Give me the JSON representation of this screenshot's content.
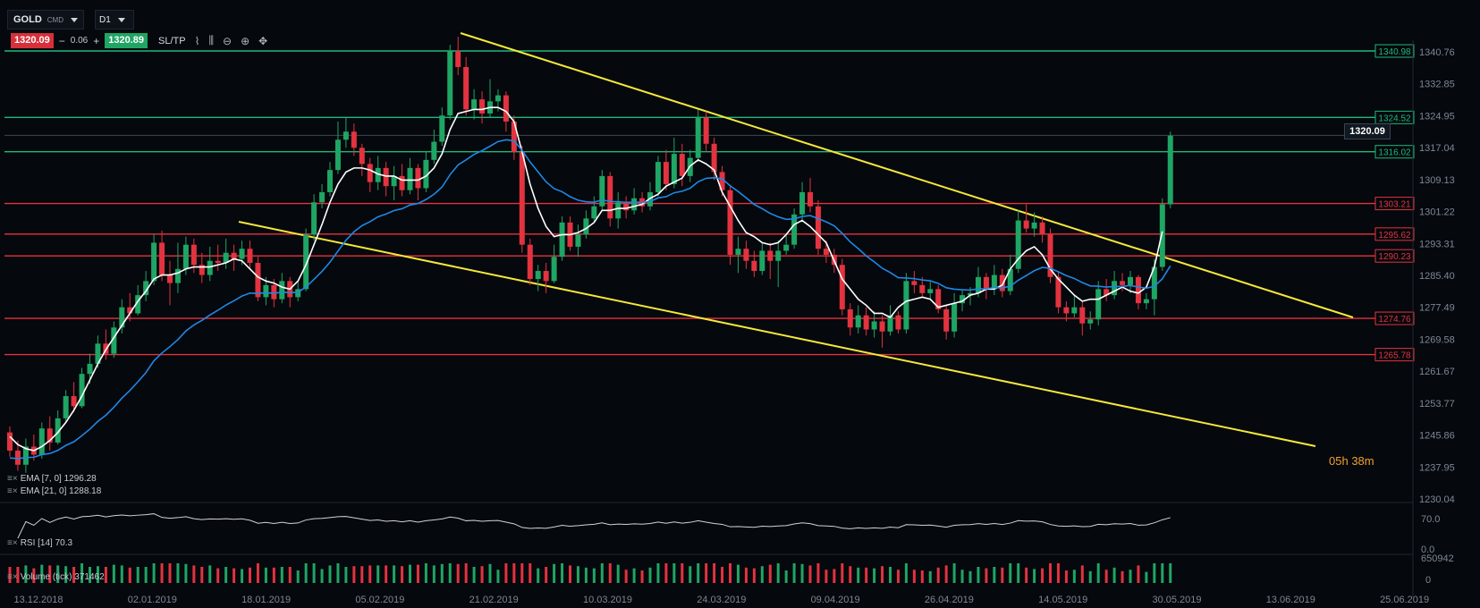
{
  "header": {
    "symbol": "GOLD",
    "symbol_sub": "CMD",
    "timeframe": "D1",
    "sell_price": "1320.09",
    "step_minus": "−",
    "spread": "0.06",
    "step_plus": "+",
    "buy_price": "1320.89",
    "sltp_label": "SL/TP"
  },
  "icons": [
    "line-chart-icon",
    "candles-icon",
    "zoom-out-icon",
    "zoom-in-icon",
    "move-icon"
  ],
  "colors": {
    "bull": "#1fa564",
    "bear": "#e2333f",
    "ema7": "#ffffff",
    "ema21": "#1e88e5",
    "support": "#e2333f",
    "resistance": "#1fb87a",
    "trendline": "#f5e83a"
  },
  "legend": {
    "ema7": "EMA [7, 0] 1296.28",
    "ema21": "EMA [21, 0] 1288.18",
    "rsi": "RSI [14] 70.3",
    "volume": "Volume (tick) 371462"
  },
  "countdown": {
    "hours": "05",
    "h": "h",
    "minutes": "38",
    "m": "m"
  },
  "current_price": "1320.09",
  "chart_data": {
    "type": "candlestick",
    "y_ticks": [
      "1340.76",
      "1332.85",
      "1324.95",
      "1317.04",
      "1309.13",
      "1301.22",
      "1293.31",
      "1285.40",
      "1277.49",
      "1269.58",
      "1261.67",
      "1253.77",
      "1245.86",
      "1237.95",
      "1230.04"
    ],
    "ylim": [
      1230.04,
      1344.7
    ],
    "x_ticks": [
      "13.12.2018",
      "02.01.2019",
      "18.01.2019",
      "05.02.2019",
      "21.02.2019",
      "10.03.2019",
      "24.03.2019",
      "09.04.2019",
      "26.04.2019",
      "14.05.2019",
      "30.05.2019",
      "13.06.2019",
      "25.06.2019"
    ],
    "horizontal_levels": [
      {
        "price": 1340.98,
        "label": "1340.98",
        "kind": "resistance"
      },
      {
        "price": 1324.52,
        "label": "1324.52",
        "kind": "resistance"
      },
      {
        "price": 1316.02,
        "label": "1316.02",
        "kind": "resistance"
      },
      {
        "price": 1303.21,
        "label": "1303.21",
        "kind": "support"
      },
      {
        "price": 1295.62,
        "label": "1295.62",
        "kind": "support"
      },
      {
        "price": 1290.23,
        "label": "1290.23",
        "kind": "support"
      },
      {
        "price": 1274.76,
        "label": "1274.76",
        "kind": "support"
      },
      {
        "price": 1265.78,
        "label": "1265.78",
        "kind": "support"
      }
    ],
    "candles": [
      [
        1246.5,
        1242.0,
        1248.0,
        1240.5
      ],
      [
        1242.0,
        1238.5,
        1244.5,
        1237.0
      ],
      [
        1238.5,
        1243.0,
        1245.0,
        1236.5
      ],
      [
        1243.0,
        1241.0,
        1246.0,
        1239.5
      ],
      [
        1241.0,
        1247.5,
        1249.0,
        1240.0
      ],
      [
        1247.5,
        1244.0,
        1250.5,
        1242.0
      ],
      [
        1244.0,
        1250.0,
        1252.0,
        1243.5
      ],
      [
        1250.0,
        1255.5,
        1257.0,
        1249.0
      ],
      [
        1255.5,
        1253.0,
        1259.0,
        1251.5
      ],
      [
        1253.0,
        1261.0,
        1262.5,
        1252.5
      ],
      [
        1261.0,
        1263.5,
        1266.0,
        1258.5
      ],
      [
        1263.5,
        1268.5,
        1270.5,
        1262.5
      ],
      [
        1268.5,
        1266.0,
        1272.0,
        1264.5
      ],
      [
        1266.0,
        1272.5,
        1274.0,
        1265.0
      ],
      [
        1272.5,
        1277.5,
        1279.5,
        1271.0
      ],
      [
        1277.5,
        1276.0,
        1281.0,
        1274.0
      ],
      [
        1276.0,
        1280.5,
        1283.0,
        1275.5
      ],
      [
        1280.5,
        1284.0,
        1286.5,
        1279.0
      ],
      [
        1284.0,
        1293.5,
        1295.5,
        1283.0
      ],
      [
        1293.5,
        1285.5,
        1296.5,
        1284.0
      ],
      [
        1285.5,
        1283.5,
        1289.0,
        1278.0
      ],
      [
        1283.5,
        1287.0,
        1293.5,
        1281.0
      ],
      [
        1287.0,
        1293.0,
        1295.0,
        1285.5
      ],
      [
        1293.0,
        1288.0,
        1294.5,
        1286.0
      ],
      [
        1288.0,
        1285.5,
        1291.0,
        1283.5
      ],
      [
        1285.5,
        1289.0,
        1292.5,
        1284.0
      ],
      [
        1289.0,
        1288.5,
        1293.0,
        1286.5
      ],
      [
        1288.5,
        1291.0,
        1294.5,
        1287.0
      ],
      [
        1291.0,
        1289.5,
        1293.0,
        1286.5
      ],
      [
        1289.5,
        1292.0,
        1294.0,
        1288.0
      ],
      [
        1292.0,
        1288.5,
        1294.0,
        1287.0
      ],
      [
        1288.5,
        1280.0,
        1290.0,
        1279.0
      ],
      [
        1280.0,
        1283.0,
        1285.0,
        1278.0
      ],
      [
        1283.0,
        1279.5,
        1284.5,
        1277.5
      ],
      [
        1279.5,
        1284.0,
        1286.0,
        1278.5
      ],
      [
        1284.0,
        1280.0,
        1285.0,
        1277.5
      ],
      [
        1280.0,
        1282.0,
        1284.0,
        1279.0
      ],
      [
        1282.0,
        1295.5,
        1297.0,
        1281.5
      ],
      [
        1295.5,
        1303.5,
        1305.5,
        1294.0
      ],
      [
        1303.5,
        1306.0,
        1308.0,
        1302.0
      ],
      [
        1306.0,
        1311.5,
        1313.5,
        1305.0
      ],
      [
        1311.5,
        1319.0,
        1323.5,
        1310.5
      ],
      [
        1319.0,
        1321.0,
        1324.5,
        1317.0
      ],
      [
        1321.0,
        1317.0,
        1323.0,
        1315.0
      ],
      [
        1317.0,
        1313.0,
        1318.0,
        1310.0
      ],
      [
        1313.0,
        1308.5,
        1314.5,
        1306.0
      ],
      [
        1308.5,
        1312.0,
        1315.0,
        1306.5
      ],
      [
        1312.0,
        1307.5,
        1313.5,
        1305.0
      ],
      [
        1307.5,
        1310.0,
        1312.5,
        1304.0
      ],
      [
        1310.0,
        1306.5,
        1313.0,
        1305.0
      ],
      [
        1306.5,
        1312.0,
        1314.5,
        1305.5
      ],
      [
        1312.0,
        1307.0,
        1313.0,
        1304.0
      ],
      [
        1307.0,
        1314.0,
        1316.0,
        1306.0
      ],
      [
        1314.0,
        1318.5,
        1321.5,
        1313.0
      ],
      [
        1318.5,
        1325.0,
        1327.0,
        1317.5
      ],
      [
        1325.0,
        1341.0,
        1342.5,
        1324.0
      ],
      [
        1341.0,
        1337.0,
        1344.5,
        1335.0
      ],
      [
        1337.0,
        1326.5,
        1339.5,
        1325.0
      ],
      [
        1326.5,
        1329.0,
        1331.5,
        1324.0
      ],
      [
        1329.0,
        1325.5,
        1331.0,
        1323.0
      ],
      [
        1325.5,
        1328.5,
        1334.0,
        1324.5
      ],
      [
        1328.5,
        1330.0,
        1331.5,
        1326.0
      ],
      [
        1330.0,
        1323.5,
        1331.0,
        1321.0
      ],
      [
        1323.5,
        1316.0,
        1325.0,
        1314.0
      ],
      [
        1316.0,
        1293.0,
        1317.5,
        1291.0
      ],
      [
        1293.0,
        1284.5,
        1294.5,
        1283.0
      ],
      [
        1284.5,
        1286.5,
        1288.0,
        1281.5
      ],
      [
        1286.5,
        1284.0,
        1288.5,
        1281.0
      ],
      [
        1284.0,
        1290.0,
        1293.0,
        1283.5
      ],
      [
        1290.0,
        1298.5,
        1300.0,
        1289.0
      ],
      [
        1298.5,
        1292.5,
        1300.0,
        1291.5
      ],
      [
        1292.5,
        1295.5,
        1298.0,
        1290.0
      ],
      [
        1295.5,
        1299.5,
        1301.5,
        1294.5
      ],
      [
        1299.5,
        1302.5,
        1305.0,
        1298.5
      ],
      [
        1302.5,
        1310.0,
        1311.5,
        1301.5
      ],
      [
        1310.0,
        1299.5,
        1311.0,
        1297.5
      ],
      [
        1299.5,
        1303.5,
        1306.0,
        1297.0
      ],
      [
        1303.5,
        1301.5,
        1305.0,
        1299.5
      ],
      [
        1301.5,
        1304.5,
        1307.0,
        1300.5
      ],
      [
        1304.5,
        1302.5,
        1306.0,
        1301.0
      ],
      [
        1302.5,
        1306.0,
        1308.5,
        1301.5
      ],
      [
        1306.0,
        1313.5,
        1315.0,
        1305.0
      ],
      [
        1313.5,
        1308.0,
        1316.5,
        1306.5
      ],
      [
        1308.0,
        1315.5,
        1319.5,
        1307.0
      ],
      [
        1315.5,
        1310.0,
        1318.0,
        1307.5
      ],
      [
        1310.0,
        1314.5,
        1316.5,
        1308.5
      ],
      [
        1314.5,
        1324.5,
        1326.5,
        1313.5
      ],
      [
        1324.5,
        1318.0,
        1326.0,
        1316.0
      ],
      [
        1318.0,
        1311.0,
        1319.5,
        1309.0
      ],
      [
        1311.0,
        1306.5,
        1312.5,
        1305.0
      ],
      [
        1306.5,
        1290.5,
        1307.5,
        1288.0
      ],
      [
        1290.5,
        1292.0,
        1295.0,
        1286.0
      ],
      [
        1292.0,
        1289.0,
        1294.0,
        1287.0
      ],
      [
        1289.0,
        1286.5,
        1291.5,
        1285.0
      ],
      [
        1286.5,
        1291.5,
        1293.5,
        1285.5
      ],
      [
        1291.5,
        1289.0,
        1293.5,
        1284.5
      ],
      [
        1289.0,
        1291.5,
        1294.0,
        1282.5
      ],
      [
        1291.5,
        1293.0,
        1295.5,
        1290.5
      ],
      [
        1293.0,
        1300.5,
        1302.0,
        1292.0
      ],
      [
        1300.5,
        1306.0,
        1308.5,
        1299.0
      ],
      [
        1306.0,
        1302.5,
        1309.5,
        1301.0
      ],
      [
        1302.5,
        1292.0,
        1304.0,
        1290.5
      ],
      [
        1292.0,
        1290.5,
        1294.0,
        1288.5
      ],
      [
        1290.5,
        1288.0,
        1292.0,
        1286.0
      ],
      [
        1288.0,
        1277.0,
        1289.5,
        1275.5
      ],
      [
        1277.0,
        1272.5,
        1278.5,
        1270.5
      ],
      [
        1272.5,
        1275.5,
        1278.0,
        1271.0
      ],
      [
        1275.5,
        1272.0,
        1277.5,
        1270.5
      ],
      [
        1272.0,
        1274.0,
        1276.5,
        1270.0
      ],
      [
        1274.0,
        1271.5,
        1275.5,
        1267.5
      ],
      [
        1271.5,
        1275.5,
        1278.0,
        1270.5
      ],
      [
        1275.5,
        1272.0,
        1276.5,
        1271.0
      ],
      [
        1272.0,
        1284.0,
        1286.0,
        1271.0
      ],
      [
        1284.0,
        1283.0,
        1286.5,
        1281.0
      ],
      [
        1283.0,
        1281.0,
        1285.0,
        1280.0
      ],
      [
        1281.0,
        1282.0,
        1284.0,
        1279.5
      ],
      [
        1282.0,
        1277.0,
        1283.0,
        1276.0
      ],
      [
        1277.0,
        1271.5,
        1278.0,
        1269.5
      ],
      [
        1271.5,
        1278.5,
        1281.0,
        1270.0
      ],
      [
        1278.5,
        1280.5,
        1282.0,
        1276.5
      ],
      [
        1280.5,
        1281.0,
        1282.5,
        1278.0
      ],
      [
        1281.0,
        1285.0,
        1287.5,
        1280.0
      ],
      [
        1285.0,
        1282.0,
        1286.0,
        1279.5
      ],
      [
        1282.0,
        1285.5,
        1288.0,
        1280.5
      ],
      [
        1285.5,
        1281.5,
        1287.0,
        1280.0
      ],
      [
        1281.5,
        1287.0,
        1290.5,
        1280.5
      ],
      [
        1287.0,
        1299.0,
        1301.5,
        1286.0
      ],
      [
        1299.0,
        1297.0,
        1303.0,
        1296.0
      ],
      [
        1297.0,
        1298.5,
        1301.0,
        1295.0
      ],
      [
        1298.5,
        1295.5,
        1300.0,
        1293.5
      ],
      [
        1295.5,
        1285.0,
        1297.0,
        1283.5
      ],
      [
        1285.0,
        1277.5,
        1286.5,
        1276.0
      ],
      [
        1277.5,
        1276.0,
        1279.0,
        1274.0
      ],
      [
        1276.0,
        1277.5,
        1280.5,
        1275.0
      ],
      [
        1277.5,
        1273.5,
        1279.0,
        1270.5
      ],
      [
        1273.5,
        1274.5,
        1276.5,
        1272.0
      ],
      [
        1274.5,
        1282.0,
        1284.0,
        1273.0
      ],
      [
        1282.0,
        1280.5,
        1284.5,
        1279.0
      ],
      [
        1280.5,
        1284.0,
        1286.5,
        1279.5
      ],
      [
        1284.0,
        1283.0,
        1286.0,
        1281.5
      ],
      [
        1283.0,
        1285.0,
        1286.5,
        1281.0
      ],
      [
        1285.0,
        1278.5,
        1285.5,
        1277.0
      ],
      [
        1278.5,
        1279.5,
        1281.0,
        1277.0
      ],
      [
        1279.5,
        1287.5,
        1289.5,
        1275.5
      ],
      [
        1287.5,
        1303.0,
        1304.5,
        1286.5
      ],
      [
        1303.0,
        1320.0,
        1321.0,
        1302.0
      ]
    ],
    "ema7": [
      1245.5,
      1243.5,
      1242.5,
      1242.0,
      1243.0,
      1244.5,
      1246.5,
      1249.0,
      1252.0,
      1255.5,
      1259.5,
      1263.5,
      1267.0,
      1270.0,
      1273.0,
      1276.0,
      1279.0,
      1281.5,
      1284.5,
      1285.5,
      1285.5,
      1286.0,
      1287.0,
      1287.5,
      1287.5,
      1287.5,
      1288.0,
      1288.5,
      1289.5,
      1289.0,
      1287.0,
      1285.0,
      1284.0,
      1283.5,
      1282.5,
      1282.0,
      1284.0,
      1288.0,
      1293.0,
      1298.0,
      1303.5,
      1308.0,
      1311.0,
      1312.0,
      1312.0,
      1311.5,
      1310.5,
      1310.0,
      1310.0,
      1309.0,
      1309.0,
      1309.0,
      1310.0,
      1312.0,
      1315.5,
      1321.5,
      1325.5,
      1326.0,
      1326.5,
      1326.5,
      1327.0,
      1327.0,
      1326.0,
      1323.5,
      1316.0,
      1308.0,
      1302.0,
      1297.5,
      1295.0,
      1295.5,
      1295.5,
      1296.0,
      1297.0,
      1298.5,
      1301.5,
      1301.5,
      1302.0,
      1302.0,
      1302.5,
      1303.0,
      1304.5,
      1305.5,
      1307.5,
      1308.5,
      1309.5,
      1312.5,
      1314.0,
      1313.0,
      1311.5,
      1306.0,
      1302.5,
      1299.0,
      1296.0,
      1295.0,
      1293.5,
      1293.0,
      1293.5,
      1295.5,
      1298.0,
      1299.0,
      1297.5,
      1295.5,
      1293.5,
      1289.0,
      1284.5,
      1282.0,
      1279.5,
      1278.0,
      1276.0,
      1276.0,
      1275.0,
      1277.5,
      1279.0,
      1279.5,
      1280.0,
      1279.5,
      1277.5,
      1278.0,
      1278.5,
      1279.0,
      1280.5,
      1281.0,
      1282.0,
      1282.0,
      1283.0,
      1287.0,
      1289.5,
      1291.5,
      1292.5,
      1290.5,
      1287.0,
      1284.5,
      1282.5,
      1280.5,
      1279.0,
      1279.5,
      1279.5,
      1280.5,
      1281.5,
      1282.5,
      1281.5,
      1281.0,
      1282.5,
      1287.5,
      1296.3
    ]
  }
}
